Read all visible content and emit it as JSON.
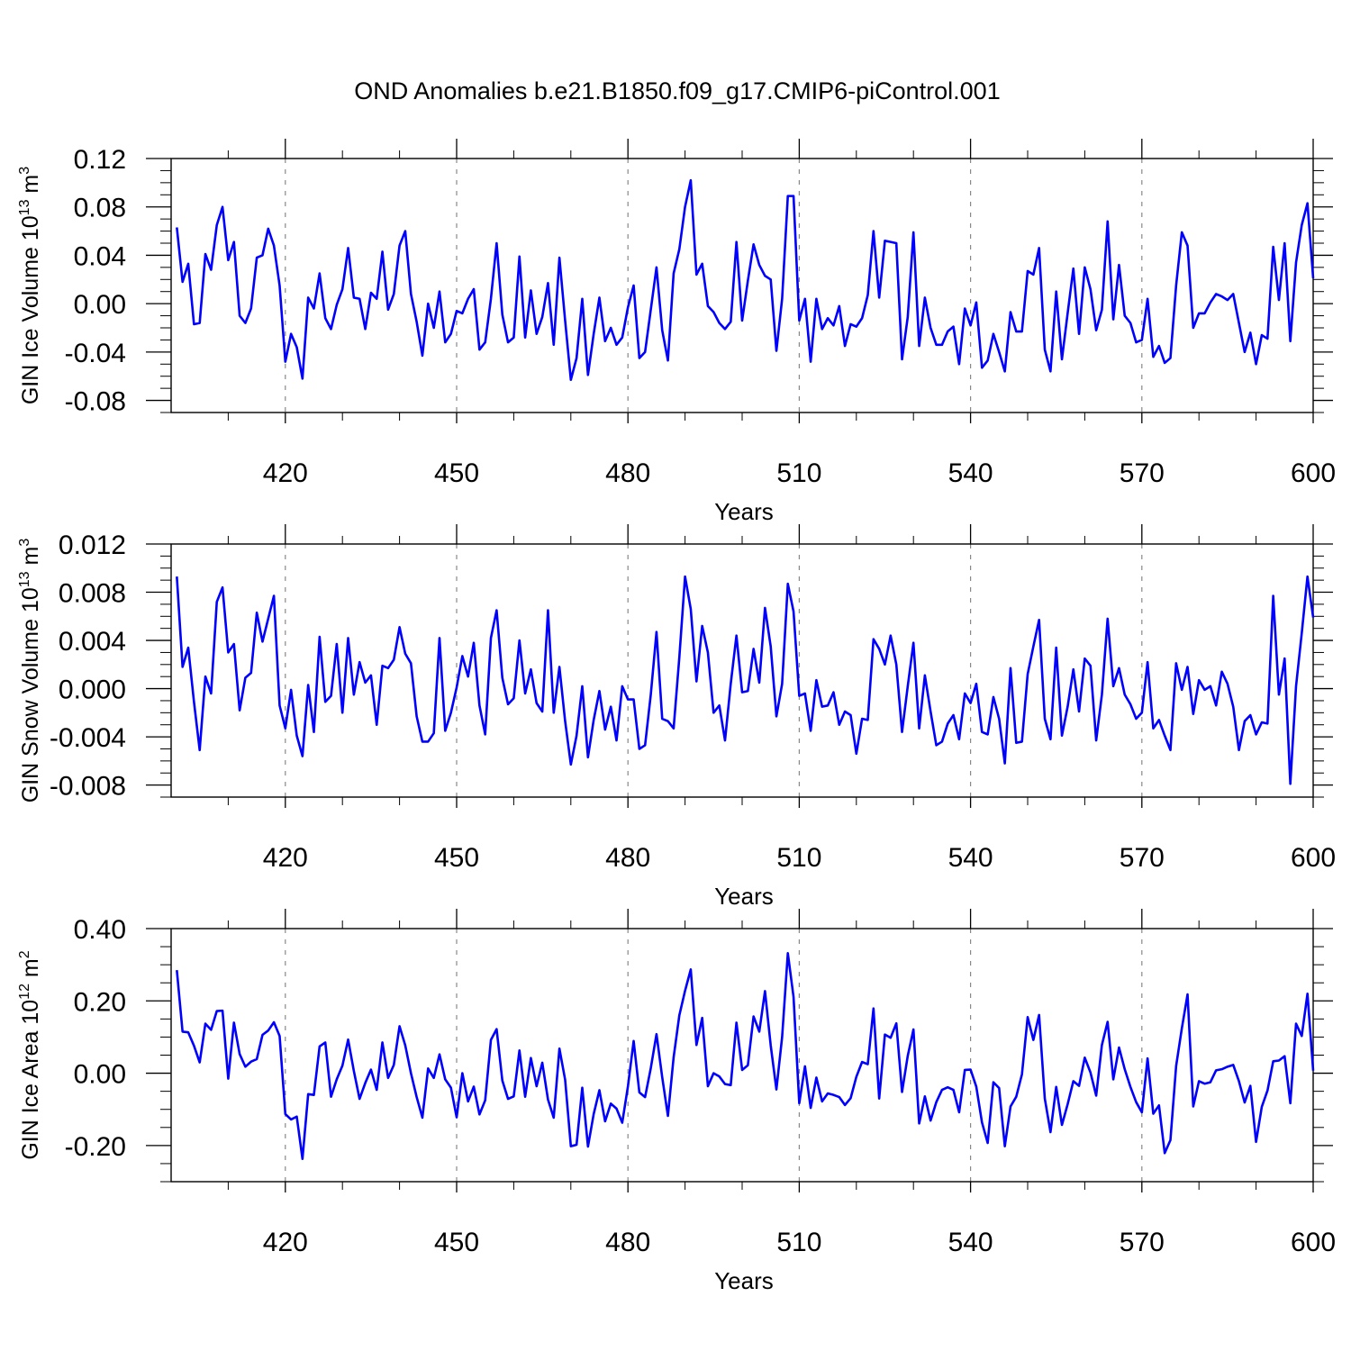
{
  "figure": {
    "title": "OND Anomalies b.e21.B1850.f09_g17.CMIP6-piControl.001"
  },
  "chart_data": [
    {
      "type": "line",
      "xlabel": "Years",
      "ylabel": "GIN Ice Volume",
      "yunit": {
        "base": "10",
        "exp": "13",
        "unit": "m",
        "unit_exp": "3"
      },
      "xlim": [
        400,
        600
      ],
      "ylim": [
        -0.09,
        0.12
      ],
      "xticks": [
        420,
        450,
        480,
        510,
        540,
        570,
        600
      ],
      "xtick_labels": [
        "420",
        "450",
        "480",
        "510",
        "540",
        "570",
        "600"
      ],
      "yticks": [
        -0.08,
        -0.04,
        0.0,
        0.04,
        0.08,
        0.12
      ],
      "ytick_labels": [
        "-0.08",
        "-0.04",
        "0.00",
        "0.04",
        "0.08",
        "0.12"
      ],
      "grid_x": "dashed at major x ticks",
      "line_color": "#0000ff",
      "x_start": 401,
      "values": [
        0.063,
        0.018,
        0.033,
        -0.017,
        -0.016,
        0.041,
        0.028,
        0.065,
        0.08,
        0.036,
        0.051,
        -0.01,
        -0.016,
        -0.004,
        0.038,
        0.04,
        0.062,
        0.048,
        0.015,
        -0.048,
        -0.025,
        -0.036,
        -0.062,
        0.005,
        -0.004,
        0.025,
        -0.012,
        -0.021,
        -0.001,
        0.012,
        0.046,
        0.005,
        0.004,
        -0.021,
        0.009,
        0.004,
        0.043,
        -0.005,
        0.008,
        0.048,
        0.06,
        0.008,
        -0.015,
        -0.043,
        0.0,
        -0.02,
        0.01,
        -0.032,
        -0.025,
        -0.006,
        -0.008,
        0.004,
        0.012,
        -0.038,
        -0.032,
        0.004,
        0.05,
        -0.009,
        -0.032,
        -0.028,
        0.039,
        -0.028,
        0.011,
        -0.025,
        -0.011,
        0.017,
        -0.034,
        0.038,
        -0.014,
        -0.063,
        -0.045,
        0.004,
        -0.059,
        -0.025,
        0.005,
        -0.031,
        -0.02,
        -0.034,
        -0.028,
        -0.003,
        0.015,
        -0.045,
        -0.04,
        -0.005,
        0.03,
        -0.022,
        -0.047,
        0.025,
        0.045,
        0.08,
        0.102,
        0.024,
        0.033,
        -0.002,
        -0.007,
        -0.016,
        -0.021,
        -0.015,
        0.051,
        -0.014,
        0.019,
        0.049,
        0.032,
        0.023,
        0.02,
        -0.039,
        0.004,
        0.089,
        0.089,
        -0.014,
        0.004,
        -0.048,
        0.004,
        -0.021,
        -0.012,
        -0.018,
        -0.002,
        -0.035,
        -0.017,
        -0.019,
        -0.012,
        0.007,
        0.06,
        0.005,
        0.052,
        0.051,
        0.05,
        -0.046,
        -0.011,
        0.059,
        -0.035,
        0.005,
        -0.02,
        -0.034,
        -0.034,
        -0.023,
        -0.019,
        -0.05,
        -0.004,
        -0.018,
        0.001,
        -0.053,
        -0.047,
        -0.025,
        -0.04,
        -0.056,
        -0.007,
        -0.023,
        -0.023,
        0.027,
        0.024,
        0.046,
        -0.038,
        -0.056,
        0.01,
        -0.046,
        -0.008,
        0.029,
        -0.025,
        0.03,
        0.012,
        -0.022,
        -0.005,
        0.068,
        -0.013,
        0.032,
        -0.01,
        -0.016,
        -0.032,
        -0.03,
        0.004,
        -0.044,
        -0.035,
        -0.049,
        -0.045,
        0.015,
        0.059,
        0.048,
        -0.02,
        -0.008,
        -0.008,
        0.001,
        0.008,
        0.006,
        0.003,
        0.008,
        -0.016,
        -0.04,
        -0.024,
        -0.05,
        -0.026,
        -0.029,
        0.047,
        0.003,
        0.05,
        -0.031,
        0.034,
        0.065,
        0.083,
        0.021
      ]
    },
    {
      "type": "line",
      "xlabel": "Years",
      "ylabel": "GIN Snow Volume",
      "yunit": {
        "base": "10",
        "exp": "13",
        "unit": "m",
        "unit_exp": "3"
      },
      "xlim": [
        400,
        600
      ],
      "ylim": [
        -0.009,
        0.012
      ],
      "xticks": [
        420,
        450,
        480,
        510,
        540,
        570,
        600
      ],
      "xtick_labels": [
        "420",
        "450",
        "480",
        "510",
        "540",
        "570",
        "600"
      ],
      "yticks": [
        -0.008,
        -0.004,
        0.0,
        0.004,
        0.008,
        0.012
      ],
      "ytick_labels": [
        "-0.008",
        "-0.004",
        "0.000",
        "0.004",
        "0.008",
        "0.012"
      ],
      "grid_x": "dashed at major x ticks",
      "line_color": "#0000ff",
      "x_start": 401,
      "values": [
        0.0093,
        0.0018,
        0.0034,
        -0.0011,
        -0.0051,
        0.001,
        -0.0004,
        0.0072,
        0.0084,
        0.003,
        0.0037,
        -0.0018,
        0.0009,
        0.0013,
        0.0063,
        0.0039,
        0.0058,
        0.0077,
        -0.0014,
        -0.0033,
        -0.0001,
        -0.0039,
        -0.0056,
        0.0003,
        -0.0036,
        0.0043,
        -0.0011,
        -0.0006,
        0.0037,
        -0.002,
        0.0042,
        -0.0005,
        0.0022,
        0.0005,
        0.0011,
        -0.003,
        0.0019,
        0.0017,
        0.0024,
        0.0051,
        0.0029,
        0.0021,
        -0.0023,
        -0.0044,
        -0.0044,
        -0.0037,
        0.0042,
        -0.0035,
        -0.002,
        0.0001,
        0.0027,
        0.001,
        0.0038,
        -0.0014,
        -0.0038,
        0.0042,
        0.0065,
        0.0009,
        -0.0013,
        -0.0008,
        0.004,
        -0.0004,
        0.0016,
        -0.0012,
        -0.0019,
        0.0065,
        -0.002,
        0.0018,
        -0.0027,
        -0.0063,
        -0.0039,
        0.0002,
        -0.0057,
        -0.0026,
        -0.0002,
        -0.0034,
        -0.0015,
        -0.0043,
        0.0002,
        -0.0009,
        -0.0009,
        -0.005,
        -0.0047,
        -0.0005,
        0.0047,
        -0.0025,
        -0.0027,
        -0.0033,
        0.0026,
        0.0093,
        0.0066,
        0.0006,
        0.0052,
        0.003,
        -0.002,
        -0.0014,
        -0.0043,
        0.0004,
        0.0044,
        -0.0003,
        -0.0002,
        0.0033,
        0.0005,
        0.0067,
        0.0035,
        -0.0023,
        0.0004,
        0.0087,
        0.0064,
        -0.0006,
        -0.0004,
        -0.0035,
        0.0007,
        -0.0015,
        -0.0014,
        -0.0003,
        -0.003,
        -0.0019,
        -0.0022,
        -0.0054,
        -0.0025,
        -0.0026,
        0.0041,
        0.0033,
        0.002,
        0.0044,
        0.002,
        -0.0036,
        0.0002,
        0.0038,
        -0.0033,
        0.0011,
        -0.0019,
        -0.0047,
        -0.0044,
        -0.0029,
        -0.0022,
        -0.0042,
        -0.0004,
        -0.0012,
        0.0004,
        -0.0036,
        -0.0038,
        -0.0007,
        -0.0025,
        -0.0062,
        0.0017,
        -0.0045,
        -0.0044,
        0.0012,
        0.0035,
        0.0057,
        -0.0025,
        -0.0042,
        0.0034,
        -0.0039,
        -0.0015,
        0.0016,
        -0.0019,
        0.0025,
        0.0019,
        -0.0043,
        -0.0005,
        0.0058,
        0.0002,
        0.0017,
        -0.0005,
        -0.0013,
        -0.0025,
        -0.002,
        0.0022,
        -0.0033,
        -0.0026,
        -0.0039,
        -0.0051,
        0.0021,
        -0.0001,
        0.0018,
        -0.0021,
        0.0007,
        -0.0001,
        0.0002,
        -0.0014,
        0.0014,
        0.0004,
        -0.0015,
        -0.0051,
        -0.0027,
        -0.0022,
        -0.0038,
        -0.0028,
        -0.0029,
        0.0077,
        -0.0005,
        0.0025,
        -0.0079,
        0.0002,
        0.0046,
        0.0093,
        0.0059
      ]
    },
    {
      "type": "line",
      "xlabel": "Years",
      "ylabel": "GIN Ice Area",
      "yunit": {
        "base": "10",
        "exp": "12",
        "unit": "m",
        "unit_exp": "2"
      },
      "xlim": [
        400,
        600
      ],
      "ylim": [
        -0.3,
        0.4
      ],
      "xticks": [
        420,
        450,
        480,
        510,
        540,
        570,
        600
      ],
      "xtick_labels": [
        "420",
        "450",
        "480",
        "510",
        "540",
        "570",
        "600"
      ],
      "yticks": [
        -0.2,
        0.0,
        0.2,
        0.4
      ],
      "ytick_labels": [
        "-0.20",
        "0.00",
        "0.20",
        "0.40"
      ],
      "grid_x": "dashed at major x ticks",
      "line_color": "#0000ff",
      "x_start": 401,
      "values": [
        0.285,
        0.115,
        0.113,
        0.076,
        0.03,
        0.137,
        0.12,
        0.172,
        0.173,
        -0.015,
        0.14,
        0.053,
        0.018,
        0.032,
        0.039,
        0.106,
        0.118,
        0.141,
        0.103,
        -0.113,
        -0.128,
        -0.12,
        -0.237,
        -0.058,
        -0.06,
        0.074,
        0.085,
        -0.065,
        -0.017,
        0.021,
        0.093,
        0.006,
        -0.071,
        -0.027,
        0.01,
        -0.046,
        0.085,
        -0.013,
        0.023,
        0.13,
        0.077,
        0.0,
        -0.066,
        -0.123,
        0.013,
        -0.013,
        0.052,
        -0.017,
        -0.04,
        -0.122,
        0.0,
        -0.078,
        -0.037,
        -0.114,
        -0.075,
        0.092,
        0.122,
        -0.02,
        -0.071,
        -0.064,
        0.063,
        -0.065,
        0.042,
        -0.036,
        0.029,
        -0.073,
        -0.123,
        0.068,
        -0.018,
        -0.202,
        -0.198,
        -0.04,
        -0.203,
        -0.113,
        -0.047,
        -0.133,
        -0.084,
        -0.098,
        -0.137,
        -0.036,
        0.089,
        -0.053,
        -0.066,
        0.014,
        0.108,
        -0.011,
        -0.118,
        0.044,
        0.16,
        0.228,
        0.287,
        0.078,
        0.153,
        -0.036,
        0.0,
        -0.009,
        -0.03,
        -0.033,
        0.14,
        0.009,
        0.022,
        0.157,
        0.115,
        0.227,
        0.077,
        -0.045,
        0.1,
        0.332,
        0.211,
        -0.083,
        0.019,
        -0.096,
        -0.012,
        -0.078,
        -0.056,
        -0.06,
        -0.066,
        -0.088,
        -0.069,
        -0.01,
        0.031,
        0.025,
        0.179,
        -0.07,
        0.107,
        0.098,
        0.138,
        -0.052,
        0.048,
        0.121,
        -0.139,
        -0.064,
        -0.131,
        -0.08,
        -0.046,
        -0.039,
        -0.046,
        -0.108,
        0.009,
        0.01,
        -0.037,
        -0.136,
        -0.193,
        -0.025,
        -0.041,
        -0.202,
        -0.092,
        -0.065,
        -0.003,
        0.155,
        0.092,
        0.161,
        -0.07,
        -0.163,
        -0.038,
        -0.143,
        -0.086,
        -0.022,
        -0.035,
        0.043,
        0.002,
        -0.062,
        0.078,
        0.142,
        -0.017,
        0.071,
        0.011,
        -0.038,
        -0.08,
        -0.108,
        0.041,
        -0.112,
        -0.089,
        -0.221,
        -0.185,
        0.02,
        0.124,
        0.218,
        -0.092,
        -0.022,
        -0.029,
        -0.025,
        0.008,
        0.011,
        0.018,
        0.023,
        -0.022,
        -0.081,
        -0.035,
        -0.19,
        -0.093,
        -0.048,
        0.033,
        0.035,
        0.047,
        -0.083,
        0.137,
        0.103,
        0.22,
        0.007
      ]
    }
  ]
}
